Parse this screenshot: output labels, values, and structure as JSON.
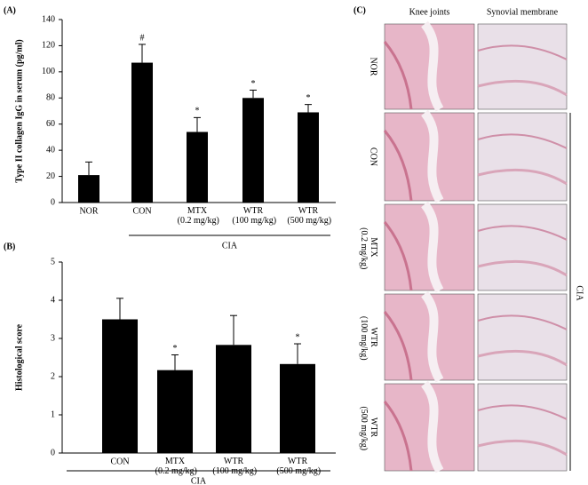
{
  "chart_data": [
    {
      "type": "bar",
      "panel": "(A)",
      "y_label": "Type II collagen IgG in serum (pg/ml)",
      "categories": [
        "NOR",
        "CON",
        "MTX (0.2 mg/kg)",
        "WTR (100 mg/kg)",
        "WTR (500 mg/kg)"
      ],
      "values": [
        21,
        107,
        54,
        80,
        69
      ],
      "errors": [
        10,
        14,
        11,
        6,
        6
      ],
      "annotations": [
        null,
        "#",
        "*",
        "*",
        "*"
      ],
      "color": "#000000",
      "group_label": "CIA",
      "group_start": 1,
      "ylim": [
        0,
        140
      ],
      "yticks": [
        0,
        20,
        40,
        60,
        80,
        100,
        120,
        140
      ]
    },
    {
      "type": "bar",
      "panel": "(B)",
      "y_label": "Histological score",
      "categories": [
        "CON",
        "MTX (0.2 mg/kg)",
        "WTR (100 mg/kg)",
        "WTR (500 mg/kg)"
      ],
      "values": [
        3.5,
        2.17,
        2.83,
        2.33
      ],
      "errors": [
        0.55,
        0.4,
        0.77,
        0.53
      ],
      "annotations": [
        null,
        "*",
        null,
        "*"
      ],
      "color": "#000000",
      "group_label": "CIA",
      "group_start": 0,
      "ylim": [
        0,
        5
      ],
      "yticks": [
        0,
        1,
        2,
        3,
        4,
        5
      ]
    }
  ],
  "panel_c": {
    "panel": "(C)",
    "columns": [
      "Knee joints",
      "Synovial membrane"
    ],
    "rows": [
      "NOR",
      "CON",
      "MTX (0.2 mg/kg)",
      "WTR (100 mg/kg)",
      "WTR (500 mg/kg)"
    ],
    "group_label": "CIA"
  }
}
